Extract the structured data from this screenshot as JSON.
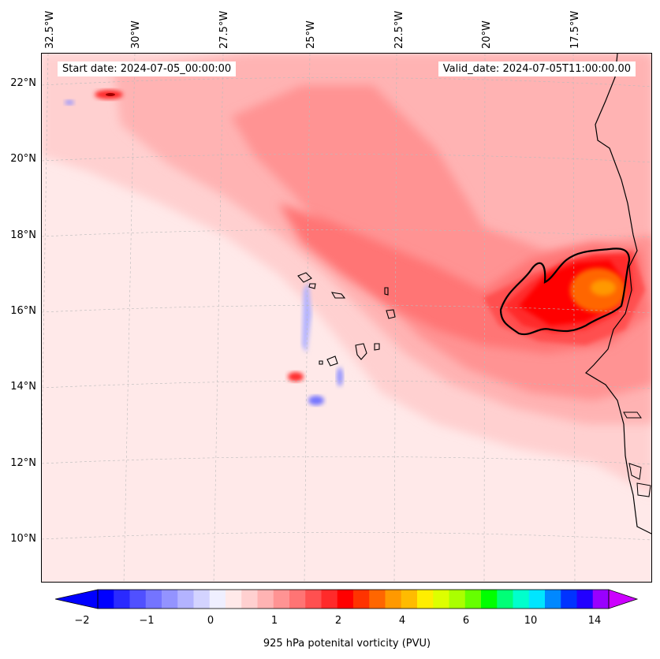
{
  "map": {
    "start_date_label": "Start date: 2024-07-05_00:00:00",
    "valid_date_label": "Valid_date: 2024-07-05T11:00:00.00",
    "lon_labels": [
      "32.5°W",
      "30°W",
      "27.5°W",
      "25°W",
      "22.5°W",
      "20°W",
      "17.5°W"
    ],
    "lat_labels": [
      "22°N",
      "20°N",
      "18°N",
      "16°N",
      "14°N",
      "12°N",
      "10°N"
    ],
    "gridlines": true,
    "colors": {
      "background_field": "#ffe9e9",
      "coastline": "#000000"
    }
  },
  "colorbar": {
    "title": "925 hPa potenital vorticity (PVU)",
    "tick_labels": [
      "−2",
      "−1",
      "0",
      "1",
      "2",
      "4",
      "6",
      "10",
      "14"
    ],
    "colors": [
      "#0000ff",
      "#2a2aff",
      "#5050ff",
      "#7474ff",
      "#9393ff",
      "#b3b3ff",
      "#d3d3ff",
      "#efefff",
      "#ffe9e9",
      "#ffd0d0",
      "#ffb3b3",
      "#ff9393",
      "#ff7474",
      "#ff5050",
      "#ff2a2a",
      "#ff0000",
      "#ff3300",
      "#ff6600",
      "#ff9900",
      "#ffbb00",
      "#ffee00",
      "#ddff00",
      "#aaff00",
      "#66ff00",
      "#00ff00",
      "#00ff77",
      "#00ffcc",
      "#00e5ff",
      "#0088ff",
      "#0033ff",
      "#2200ff",
      "#9900ff"
    ],
    "extend_low_color": "#0000ff",
    "extend_high_color": "#cc00ff"
  }
}
